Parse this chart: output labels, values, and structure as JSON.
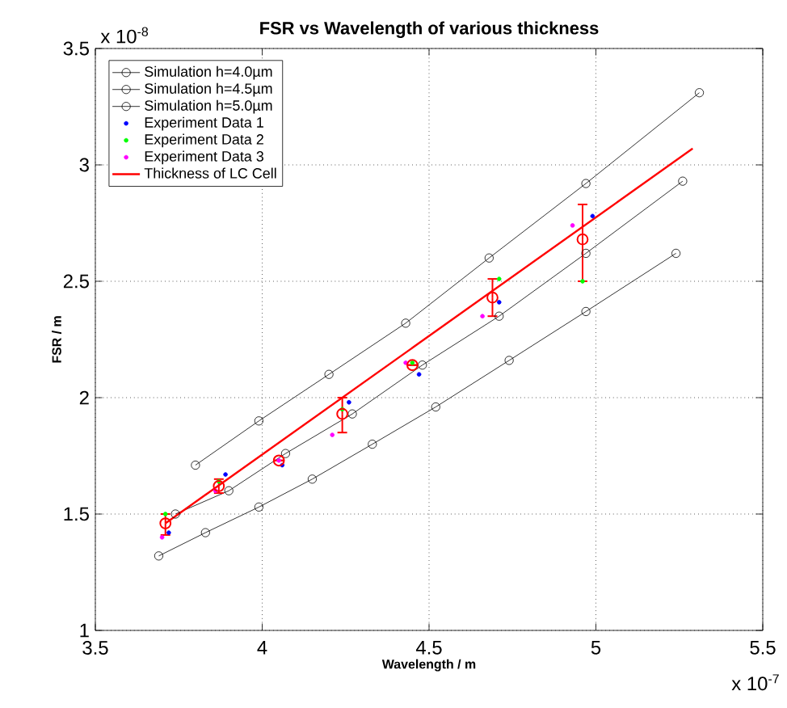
{
  "chart_data": {
    "type": "line",
    "title": "FSR vs Wavelength of various thickness",
    "xlabel": "Wavelength / m",
    "ylabel": "FSR / m",
    "annotations": [
      "x 10$^{-8}$",
      "x 10$^{-7}$"
    ],
    "xlim": [
      3.5,
      5.5
    ],
    "ylim": [
      1,
      3.5
    ],
    "xticks": [
      3.5,
      4,
      4.5,
      5,
      5.5
    ],
    "yticks": [
      1,
      1.5,
      2,
      2.5,
      3,
      3.5
    ],
    "grid": true,
    "legend": "top left",
    "series": [
      {
        "name": "Simulation h=4.0µm",
        "color": "#000000",
        "marker": "circle",
        "x": [
          3.8,
          3.99,
          4.2,
          4.43,
          4.68,
          4.97,
          5.31
        ],
        "values": [
          1.71,
          1.9,
          2.1,
          2.32,
          2.6,
          2.92,
          3.31
        ]
      },
      {
        "name": "Simulation h=4.5µm",
        "color": "#000000",
        "marker": "circle",
        "x": [
          3.74,
          3.9,
          4.07,
          4.27,
          4.48,
          4.71,
          4.97,
          5.26
        ],
        "values": [
          1.5,
          1.6,
          1.76,
          1.93,
          2.14,
          2.35,
          2.62,
          2.93
        ]
      },
      {
        "name": "Simulation h=5.0µm",
        "color": "#000000",
        "marker": "circle",
        "x": [
          3.69,
          3.83,
          3.99,
          4.15,
          4.33,
          4.52,
          4.74,
          4.97,
          5.24
        ],
        "values": [
          1.32,
          1.42,
          1.53,
          1.65,
          1.8,
          1.96,
          2.16,
          2.37,
          2.62
        ]
      },
      {
        "name": "Experiment Data 1",
        "type": "scatter",
        "color": "#0000ff",
        "marker": "circle",
        "x": [
          3.72,
          3.89,
          4.06,
          4.26,
          4.47,
          4.71,
          4.99
        ],
        "values": [
          1.42,
          1.67,
          1.71,
          1.98,
          2.1,
          2.41,
          2.78
        ]
      },
      {
        "name": "Experiment Data 2",
        "type": "scatter",
        "color": "#00ff00",
        "marker": "circle",
        "x": [
          3.71,
          3.87,
          4.05,
          4.24,
          4.45,
          4.71,
          4.96
        ],
        "values": [
          1.5,
          1.64,
          null,
          1.95,
          2.15,
          2.51,
          2.5
        ]
      },
      {
        "name": "Experiment Data 3",
        "type": "scatter",
        "color": "#ff00ff",
        "marker": "circle",
        "x": [
          3.7,
          3.86,
          4.05,
          4.21,
          4.43,
          4.66,
          4.93
        ],
        "values": [
          1.4,
          1.6,
          1.73,
          1.84,
          2.15,
          2.35,
          2.74
        ]
      },
      {
        "name": "Thickness of LC Cell",
        "color": "#ff0000",
        "marker": "none",
        "x": [
          3.71,
          5.29
        ],
        "values": [
          1.46,
          3.07
        ]
      },
      {
        "type": "scatter",
        "color": "#ff0000",
        "marker": "circle",
        "x": [
          3.71,
          3.87,
          4.05,
          4.24,
          4.45,
          4.69,
          4.96
        ],
        "values": [
          1.46,
          1.62,
          1.73,
          1.93,
          2.14,
          2.43,
          2.68
        ],
        "errors": [
          [
            1.41,
            1.5
          ],
          [
            1.59,
            1.65
          ],
          null,
          [
            1.85,
            2.0
          ],
          null,
          [
            2.35,
            2.51
          ],
          [
            2.5,
            2.83
          ]
        ]
      }
    ]
  }
}
